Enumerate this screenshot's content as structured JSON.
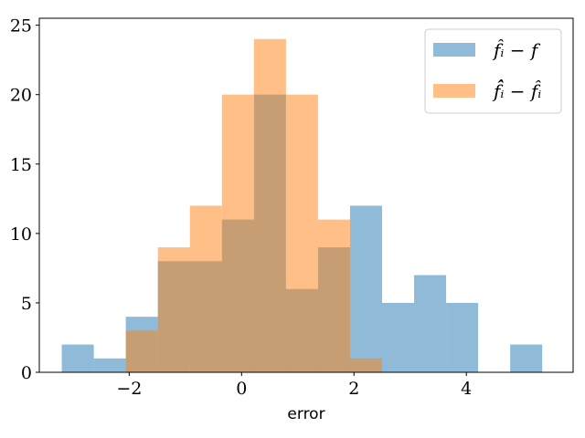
{
  "chart_data": {
    "type": "histogram",
    "xlabel": "error",
    "ylabel": "",
    "xlim": [
      -3.6,
      5.9
    ],
    "ylim": [
      0,
      25.5
    ],
    "xticks": [
      -2,
      0,
      2,
      4
    ],
    "xtick_labels": [
      "−2",
      "0",
      "2",
      "4"
    ],
    "yticks": [
      0,
      5,
      10,
      15,
      20,
      25
    ],
    "ytick_labels": [
      "0",
      "5",
      "10",
      "15",
      "20",
      "25"
    ],
    "grid": false,
    "legend_position": "top-right",
    "series": [
      {
        "name": "f̂ᵢ − f",
        "color": "#1f77b4",
        "alpha": 0.5,
        "bin_edges": [
          -3.2,
          -2.63,
          -2.06,
          -1.49,
          -0.92,
          -0.35,
          0.22,
          0.79,
          1.36,
          1.93,
          2.5,
          3.07,
          3.64,
          4.21,
          4.78,
          5.35
        ],
        "counts": [
          2,
          1,
          4,
          8,
          8,
          11,
          20,
          6,
          9,
          12,
          5,
          7,
          5,
          0,
          2
        ]
      },
      {
        "name": "f̂̂ᵢ − f̂ᵢ",
        "color": "#ff7f0e",
        "alpha": 0.5,
        "bin_edges": [
          -2.06,
          -1.49,
          -0.92,
          -0.35,
          0.22,
          0.79,
          1.36,
          1.93,
          2.5
        ],
        "counts": [
          3,
          9,
          12,
          20,
          24,
          20,
          11,
          1
        ]
      }
    ]
  }
}
